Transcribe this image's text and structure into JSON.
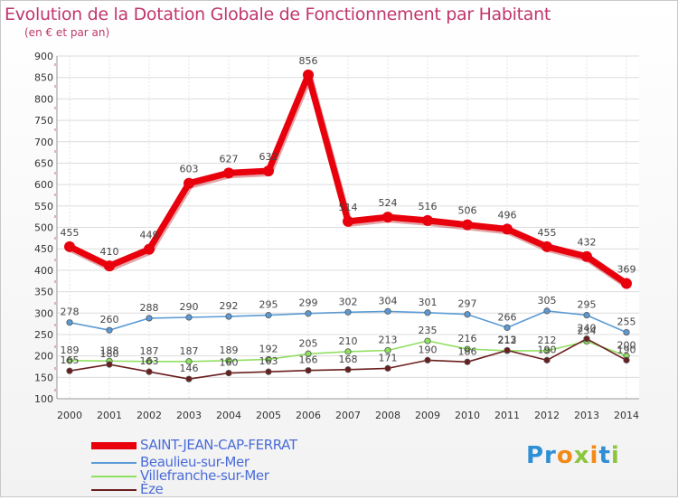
{
  "title": "Evolution de la Dotation Globale de Fonctionnement par Habitant",
  "subtitle": "(en € et par an)",
  "logo": {
    "text": "Proxiti",
    "colors": [
      "#2f8fd6",
      "#f28a17",
      "#8cc63f"
    ]
  },
  "chart_data": {
    "type": "line",
    "title": "Evolution de la Dotation Globale de Fonctionnement par Habitant",
    "subtitle": "(en € et par an)",
    "xlabel": "",
    "ylabel": "",
    "ylim": [
      100,
      900
    ],
    "yticks": [
      100,
      150,
      200,
      250,
      300,
      350,
      400,
      450,
      500,
      550,
      600,
      650,
      700,
      750,
      800,
      850,
      900
    ],
    "grid": true,
    "legend_position": "bottom-left",
    "x": [
      "2000",
      "2001",
      "2002",
      "2003",
      "2004",
      "2005",
      "2006",
      "2007",
      "2008",
      "2009",
      "2010",
      "2011",
      "2012",
      "2013",
      "2014"
    ],
    "series": [
      {
        "name": "SAINT-JEAN-CAP-FERRAT",
        "color": "#e8000c",
        "emphasis": true,
        "values": [
          455,
          410,
          449,
          603,
          627,
          632,
          856,
          514,
          524,
          516,
          506,
          496,
          455,
          432,
          369
        ]
      },
      {
        "name": "Beaulieu-sur-Mer",
        "color": "#5b9bd5",
        "emphasis": false,
        "values": [
          278,
          260,
          288,
          290,
          292,
          295,
          299,
          302,
          304,
          301,
          297,
          266,
          305,
          295,
          255
        ]
      },
      {
        "name": "Villefranche-sur-Mer",
        "color": "#90e060",
        "emphasis": false,
        "values": [
          189,
          188,
          187,
          187,
          189,
          192,
          205,
          210,
          213,
          235,
          216,
          212,
          212,
          234,
          200
        ]
      },
      {
        "name": "Èze",
        "color": "#6b1e1e",
        "emphasis": false,
        "values": [
          165,
          180,
          163,
          146,
          160,
          163,
          166,
          168,
          171,
          190,
          186,
          213,
          190,
          240,
          190
        ]
      }
    ]
  }
}
